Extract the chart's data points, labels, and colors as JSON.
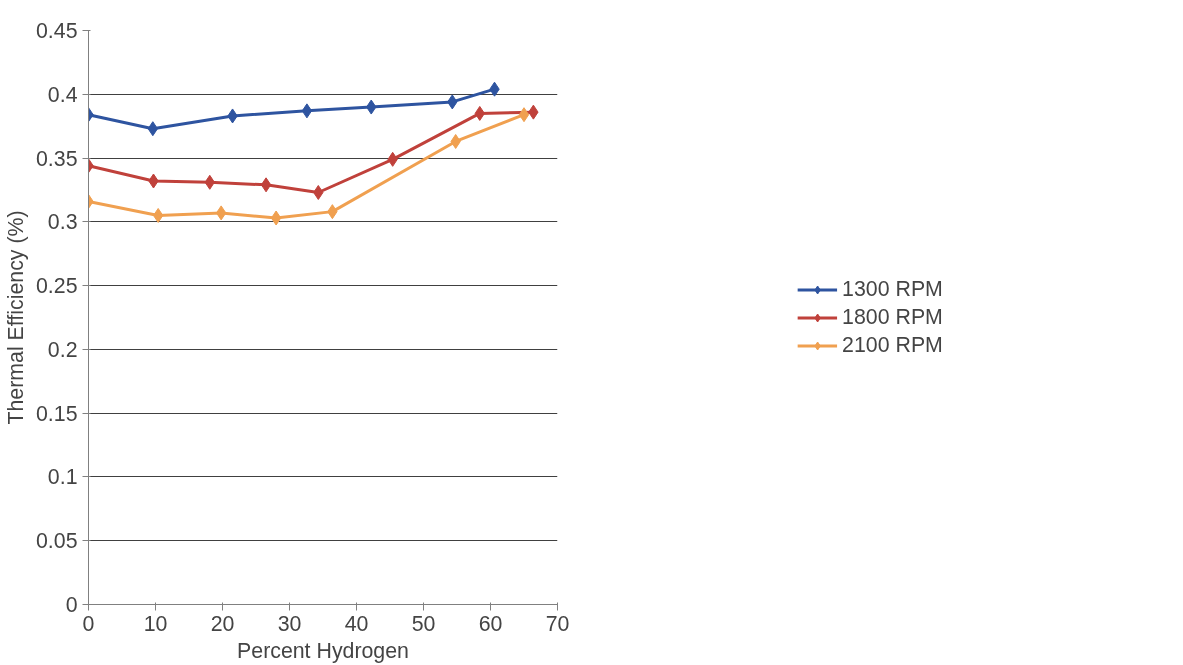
{
  "chart_data": {
    "type": "line",
    "xlabel": "Percent Hydrogen",
    "ylabel": "Thermal Efficiency (%)",
    "xlim": [
      0,
      70
    ],
    "xticks": [
      0,
      10,
      20,
      30,
      40,
      50,
      60,
      70
    ],
    "ylim": [
      0,
      0.45
    ],
    "yticks": [
      0,
      0.05,
      0.1,
      0.15,
      0.2,
      0.25,
      0.3,
      0.35,
      0.4,
      0.45
    ],
    "grid": "y",
    "legend": "right",
    "marker": "diamond",
    "line_style": "solid",
    "series": [
      {
        "name": "1300 RPM",
        "color": "#2e54a0",
        "x": [
          0,
          9.6,
          21.5,
          32.6,
          42.2,
          54.3,
          60.6
        ],
        "values": [
          0.384,
          0.373,
          0.383,
          0.387,
          0.39,
          0.394,
          0.404
        ]
      },
      {
        "name": "1800 RPM",
        "color": "#c0413b",
        "x": [
          0,
          9.7,
          18.1,
          26.5,
          34.3,
          45.4,
          58.4,
          66.4
        ],
        "values": [
          0.344,
          0.332,
          0.331,
          0.329,
          0.323,
          0.349,
          0.385,
          0.386
        ]
      },
      {
        "name": "2100 RPM",
        "color": "#f0a050",
        "x": [
          0,
          10.4,
          19.8,
          28.0,
          36.4,
          54.8,
          65.0
        ],
        "values": [
          0.316,
          0.305,
          0.307,
          0.303,
          0.308,
          0.363,
          0.384
        ]
      }
    ]
  }
}
